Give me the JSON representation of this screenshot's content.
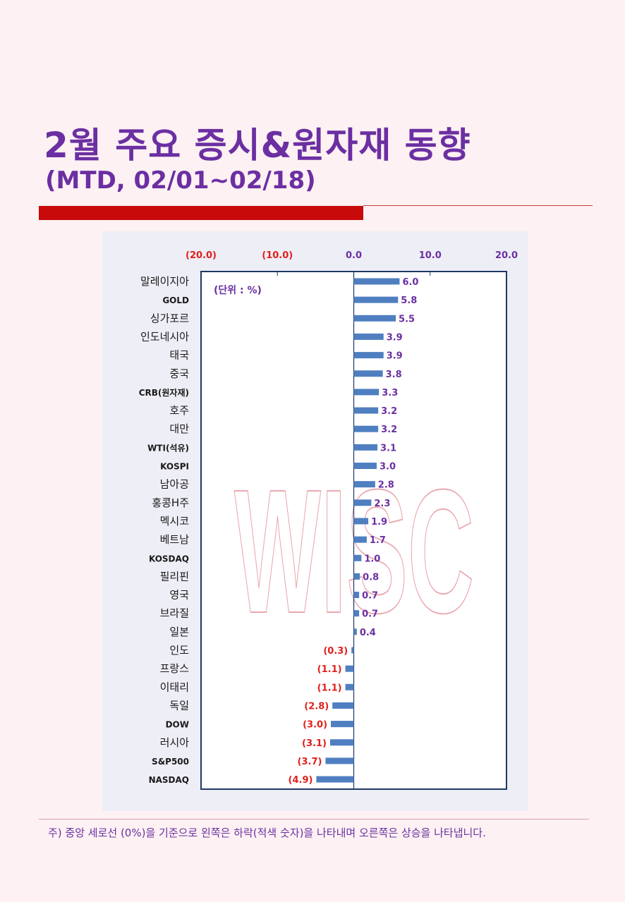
{
  "header": {
    "title": "2월 주요 증시&원자재 동향",
    "subtitle": "(MTD, 02/01~02/18)"
  },
  "colors": {
    "title": "#6b2fa2",
    "accent_bar": "#c80a0a",
    "bar": "#4f7fc0",
    "negative_label": "#e0201c",
    "positive_label": "#6b2fa2",
    "watermark": "#e8a0a8"
  },
  "watermark": "WISC",
  "footnote": "주) 중앙 세로선 (0%)을 기준으로 왼쪽은 하락(적색 숫자)을 나타내며 오른쪽은 상승을 나타냅니다.",
  "chart_data": {
    "type": "bar",
    "orientation": "horizontal",
    "unit_label": "(단위 : %)",
    "xlim": [
      -20,
      20
    ],
    "x_ticks": [
      -20,
      -10,
      0,
      10,
      20
    ],
    "x_tick_labels": [
      "(20.0)",
      "(10.0)",
      "0.0",
      "10.0",
      "20.0"
    ],
    "categories": [
      "말레이지아",
      "GOLD",
      "싱가포르",
      "인도네시아",
      "태국",
      "중국",
      "CRB(원자재)",
      "호주",
      "대만",
      "WTI(석유)",
      "KOSPI",
      "남아공",
      "홍콩H주",
      "멕시코",
      "베트남",
      "KOSDAQ",
      "필리핀",
      "영국",
      "브라질",
      "일본",
      "인도",
      "프랑스",
      "이태리",
      "독일",
      "DOW",
      "러시아",
      "S&P500",
      "NASDAQ"
    ],
    "values": [
      6.0,
      5.8,
      5.5,
      3.9,
      3.9,
      3.8,
      3.3,
      3.2,
      3.2,
      3.1,
      3.0,
      2.8,
      2.3,
      1.9,
      1.7,
      1.0,
      0.8,
      0.7,
      0.7,
      0.4,
      -0.3,
      -1.1,
      -1.1,
      -2.8,
      -3.0,
      -3.1,
      -3.7,
      -4.9
    ],
    "value_labels": [
      "6.0",
      "5.8",
      "5.5",
      "3.9",
      "3.9",
      "3.8",
      "3.3",
      "3.2",
      "3.2",
      "3.1",
      "3.0",
      "2.8",
      "2.3",
      "1.9",
      "1.7",
      "1.0",
      "0.8",
      "0.7",
      "0.7",
      "0.4",
      "(0.3)",
      "(1.1)",
      "(1.1)",
      "(2.8)",
      "(3.0)",
      "(3.1)",
      "(3.7)",
      "(4.9)"
    ]
  }
}
